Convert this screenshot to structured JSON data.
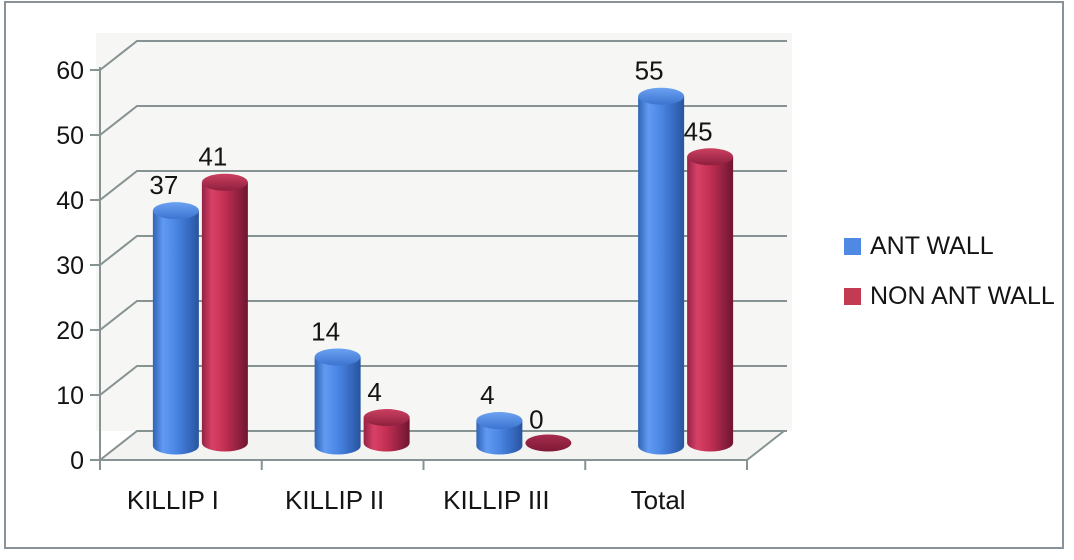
{
  "chart_data": {
    "type": "bar",
    "subtype": "3d-cylinder-column",
    "title": "",
    "categories": [
      "KILLIP I",
      "KILLIP II",
      "KILLIP III",
      "Total"
    ],
    "series": [
      {
        "name": "ANT WALL",
        "color": "#4E8AE4",
        "values": [
          37,
          14,
          4,
          55
        ]
      },
      {
        "name": "NON ANT WALL",
        "color": "#C33A53",
        "values": [
          41,
          4,
          0,
          45
        ]
      }
    ],
    "y_ticks": [
      0,
      10,
      20,
      30,
      40,
      50,
      60
    ],
    "ylim": [
      0,
      60
    ],
    "xlabel": "",
    "ylabel": "",
    "grid": true,
    "data_labels": true,
    "legend_position": "right-middle"
  },
  "colors": {
    "frame_border": "#8A9299",
    "grid_line": "#879292",
    "wall_bg": "#F6F7F5",
    "floor_bg": "#F3F4F2",
    "text": "#141414",
    "blue_body_stops": [
      "#2F63B4",
      "#619AF2",
      "#4A86E4",
      "#3568BE",
      "#28549C"
    ],
    "blue_top_stops": [
      "#6CA2F2",
      "#3C74D0"
    ],
    "red_body_stops": [
      "#932346",
      "#D84166",
      "#C22F52",
      "#8F2040",
      "#6E1530"
    ],
    "red_top_stops": [
      "#CC4061",
      "#8E1F3E"
    ],
    "red_flat_stops": [
      "#A62B4C",
      "#7E1A36"
    ]
  }
}
